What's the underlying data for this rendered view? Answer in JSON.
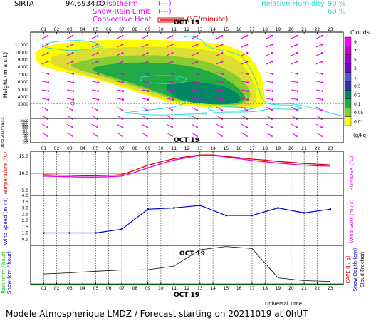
{
  "header": {
    "station": "SIRTA",
    "coords": "94.69347O",
    "legend_isotherm": "0° isotherm",
    "legend_isotherm_symbol": "(---)",
    "legend_snow_rain": "Snow-Rain Limit",
    "legend_snow_rain_symbol": "(---)",
    "legend_convective": "Convective Heat.",
    "legend_convective_unit": "(°C/minute)",
    "rh_label": "Relative Humidity",
    "rh_90": "90 %",
    "rh_60": "60 %"
  },
  "footer": {
    "title": "Modele Atmospherique LMDZ / Forecast starting on 20211019 at 0hUT",
    "xaxis_title": "Universal Time"
  },
  "colors": {
    "magenta": "#e000e0",
    "cyan": "#30d8d8",
    "red": "#e00000",
    "blue": "#0000cc",
    "green": "#00c000",
    "navy": "#000080"
  },
  "chart_data": [
    {
      "type": "heatmap",
      "panel": "clouds",
      "date_label": "OCT 19",
      "x_ticks": [
        "01",
        "02",
        "03",
        "04",
        "05",
        "06",
        "07",
        "08",
        "09",
        "10",
        "11",
        "12",
        "13",
        "14",
        "15",
        "16",
        "17",
        "18",
        "19",
        "20",
        "21",
        "22",
        "23"
      ],
      "ylabel": "Height (m a.s.l.)",
      "y_ticks_upper": [
        "11000",
        "10000",
        "9000",
        "8000",
        "7000",
        "6000",
        "5000",
        "4000",
        "3000"
      ],
      "y_ticks_lower": [
        "2000",
        "1500",
        "1000",
        "800",
        "600",
        "400",
        "300",
        "200",
        "180",
        "160",
        "140",
        "120",
        "100"
      ],
      "y_axis_note": "Up to 200 m a.s.l.",
      "zero_isotherm_height_m": 3300,
      "zero_isotherm_marker": "0",
      "rh_contour_labels": [
        "60",
        "90",
        "60",
        "90"
      ],
      "legend_title": "Clouds",
      "legend_unit": "(g/kg)",
      "legend_levels": [
        "9",
        "7",
        "5",
        "3",
        "1",
        "0.5",
        "0.2",
        "0.1",
        "0.05",
        "0.01"
      ],
      "legend_colors": [
        "#ff00ff",
        "#cc00cc",
        "#9900cc",
        "#7700cc",
        "#5555cc",
        "#3333aa",
        "#008866",
        "#22aa44",
        "#88cc33",
        "#ffff00"
      ],
      "grid": false
    },
    {
      "type": "line",
      "panel": "temperature",
      "date_label": "OCT 19",
      "x": [
        1,
        2,
        3,
        4,
        5,
        6,
        7,
        8,
        9,
        10,
        11,
        12,
        13,
        14,
        15,
        16,
        17,
        18,
        19,
        20,
        21,
        22,
        23
      ],
      "series": [
        {
          "name": "Temperature",
          "color": "#e00000",
          "values": [
            9.6,
            9.5,
            9.4,
            9.3,
            9.3,
            9.4,
            9.6,
            10.9,
            12.4,
            13.4,
            14.3,
            14.9,
            15.4,
            15.4,
            15.0,
            14.6,
            14.2,
            13.9,
            13.5,
            13.2,
            12.9,
            12.7,
            12.5
          ]
        },
        {
          "name": "Humidex",
          "color": "#e000e0",
          "values": [
            9.2,
            9.1,
            9.0,
            8.9,
            8.9,
            9.0,
            9.2,
            10.3,
            11.6,
            12.8,
            13.9,
            14.6,
            15.3,
            15.3,
            14.8,
            14.3,
            13.8,
            13.4,
            13.0,
            12.7,
            12.4,
            12.2,
            12.1
          ]
        }
      ],
      "ylabel": "Temperature (°C)",
      "ylabel_right": "HUMIDEX (°C)",
      "y_ticks": [
        "15.0",
        "10.0",
        "5.0"
      ],
      "ylim": [
        3.5,
        16.5
      ],
      "grid": true
    },
    {
      "type": "line",
      "panel": "wind",
      "x": [
        1,
        3,
        5,
        7,
        9,
        11,
        13,
        15,
        17,
        19,
        21,
        23
      ],
      "series": [
        {
          "name": "Wind Speed",
          "color": "#0000cc",
          "values": [
            1.0,
            1.0,
            1.0,
            1.3,
            2.9,
            3.0,
            3.2,
            2.4,
            2.4,
            3.0,
            2.6,
            2.9
          ]
        }
      ],
      "ylabel": "Wind Speed (m / s)",
      "ylabel_right": "Wind Gust (m / s)",
      "y_ticks": [
        "4.0",
        "3.5",
        "3.0",
        "2.5",
        "2.0",
        "1.5",
        "1.0",
        "0.5"
      ],
      "ylim": [
        0.0,
        4.0
      ],
      "grid": true
    },
    {
      "type": "area",
      "panel": "precipitation",
      "date_label": "OCT 19",
      "x": [
        1,
        3,
        5,
        7,
        9,
        11,
        13,
        15,
        17,
        19,
        21,
        23
      ],
      "series": [
        {
          "name": "Cloud Fraction",
          "color": "#000000",
          "values": [
            0.27,
            0.3,
            0.34,
            0.37,
            0.38,
            0.47,
            0.89,
            0.97,
            0.92,
            0.17,
            0.1,
            0.08
          ]
        }
      ],
      "ylabel": "Rain (mm / hour)",
      "ylabel2": "Snow (cm / hour)",
      "ylabel_right": "CAPE (J / g)",
      "ylabel_right2": "Snow Depth (cm)",
      "ylabel_right3": "Cloud Fraction",
      "ylim": [
        0,
        1
      ],
      "grid": false
    }
  ]
}
